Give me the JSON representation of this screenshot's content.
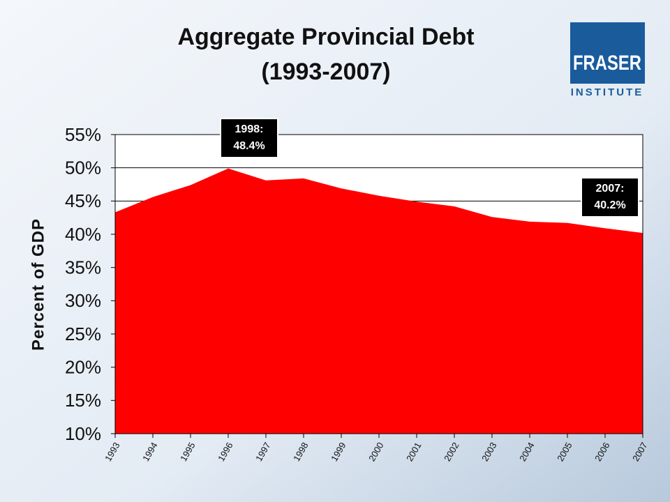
{
  "chart_data": {
    "type": "area",
    "title": "Aggregate Provincial Debt",
    "subtitle": "(1993-2007)",
    "y_label": "Percent of GDP",
    "categories": [
      "1993",
      "1994",
      "1995",
      "1996",
      "1997",
      "1998",
      "1999",
      "2000",
      "2001",
      "2002",
      "2003",
      "2004",
      "2005",
      "2006",
      "2007"
    ],
    "values": [
      43.3,
      45.6,
      47.4,
      49.9,
      48.1,
      48.4,
      46.9,
      45.8,
      44.9,
      44.2,
      42.6,
      41.9,
      41.7,
      40.9,
      40.2
    ],
    "color": "#ff0000",
    "ylim": [
      10,
      55
    ],
    "yticks": [
      {
        "value": 10,
        "label": "10%"
      },
      {
        "value": 15,
        "label": "15%"
      },
      {
        "value": 20,
        "label": "20%"
      },
      {
        "value": 25,
        "label": "25%"
      },
      {
        "value": 30,
        "label": "30%"
      },
      {
        "value": 35,
        "label": "35%"
      },
      {
        "value": 40,
        "label": "40%"
      },
      {
        "value": 45,
        "label": "45%"
      },
      {
        "value": 50,
        "label": "50%"
      },
      {
        "value": 55,
        "label": "55%"
      }
    ],
    "grid": true,
    "annotations": [
      {
        "lines": [
          "1998:",
          "48.4%"
        ]
      },
      {
        "lines": [
          "2007:",
          "40.2%"
        ]
      }
    ]
  },
  "logo": {
    "name": "FRASER",
    "sub": "INSTITUTE"
  }
}
